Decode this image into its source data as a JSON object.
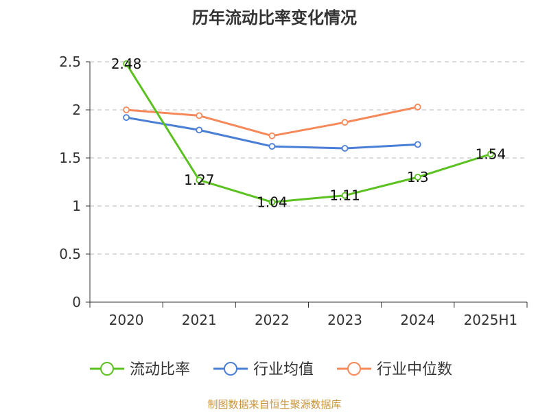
{
  "chart_data": {
    "type": "line",
    "title": "历年流动比率变化情况",
    "categories": [
      "2020",
      "2021",
      "2022",
      "2023",
      "2024",
      "2025H1"
    ],
    "ylim": [
      0,
      2.5
    ],
    "yticks": [
      "0",
      "0.5",
      "1",
      "1.5",
      "2",
      "2.5"
    ],
    "grid": true,
    "legend_position": "bottom",
    "series": [
      {
        "name": "流动比率",
        "color": "#5bc120",
        "values": [
          2.48,
          1.27,
          1.04,
          1.11,
          1.3,
          1.54
        ],
        "labels": [
          "2.48",
          "1.27",
          "1.04",
          "1.11",
          "1.3",
          "1.54"
        ]
      },
      {
        "name": "行业均值",
        "color": "#4a7fd6",
        "values": [
          1.92,
          1.79,
          1.62,
          1.6,
          1.64,
          null
        ]
      },
      {
        "name": "行业中位数",
        "color": "#f5895a",
        "values": [
          2.0,
          1.94,
          1.73,
          1.87,
          2.03,
          null
        ]
      }
    ]
  },
  "footer": "制图数据来自恒生聚源数据库"
}
